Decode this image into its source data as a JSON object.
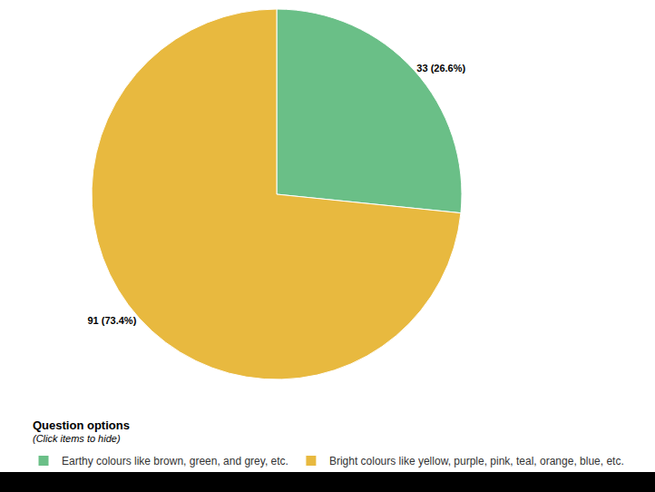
{
  "chart_data": {
    "type": "pie",
    "categories": [
      "Earthy colours like brown, green, and grey, etc.",
      "Bright colours like yellow, purple, pink, teal, orange, blue, etc."
    ],
    "values": [
      33,
      91
    ],
    "value_labels": [
      "33 (26.6%)",
      "91 (73.4%)"
    ],
    "colors": [
      "#6abf87",
      "#e8b93f"
    ],
    "data_labels": true,
    "legend": "bottom",
    "annotations": [
      "Question options",
      "(Click items to hide)"
    ]
  }
}
